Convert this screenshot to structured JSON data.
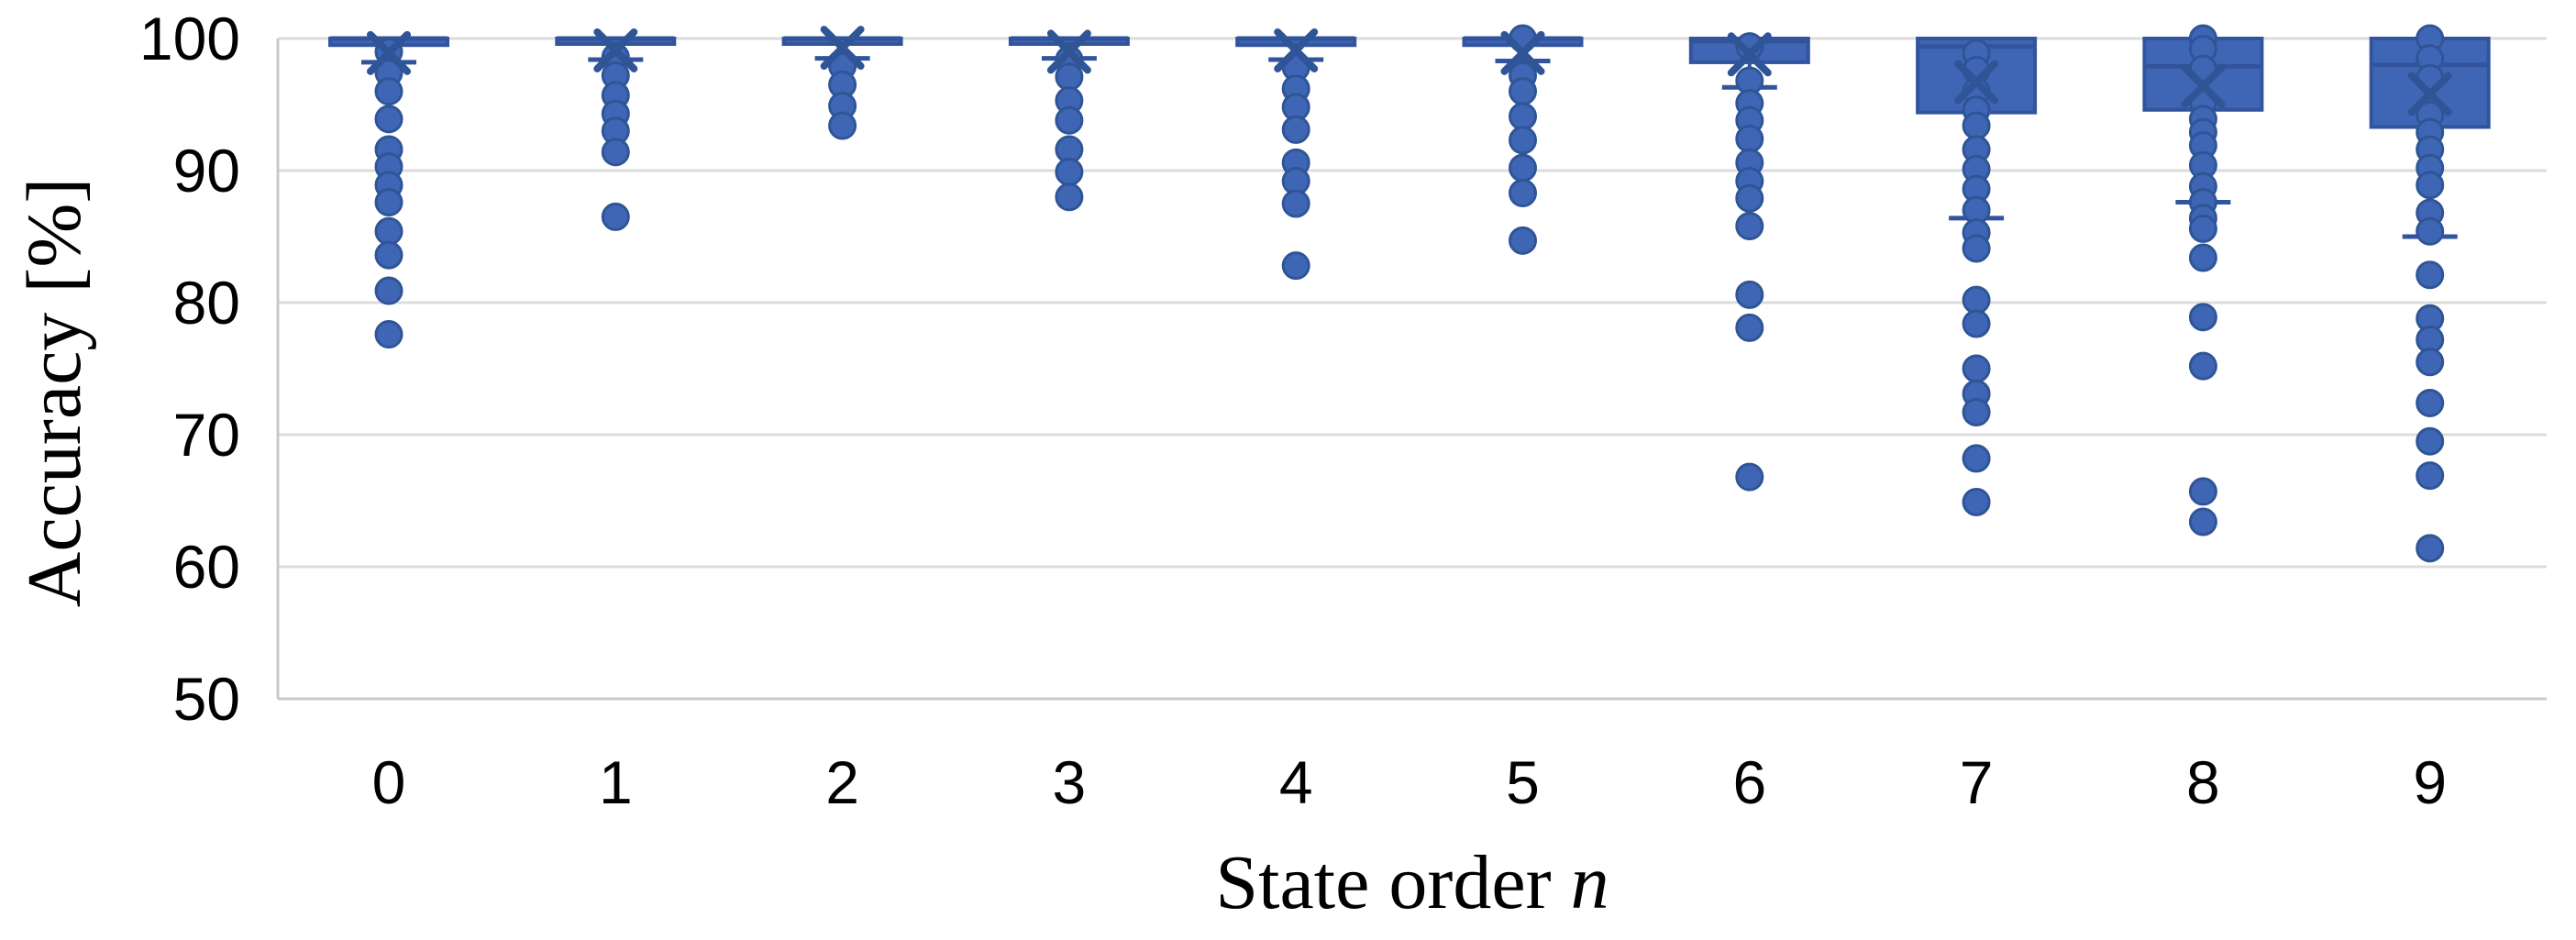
{
  "chart_data": {
    "type": "box",
    "ylabel": "Accuracy [%]",
    "xlabel_text": "State order ",
    "xlabel_var": "n",
    "ylim": [
      50,
      100
    ],
    "y_ticks": [
      100,
      90,
      80,
      70,
      60,
      50
    ],
    "categories": [
      "0",
      "1",
      "2",
      "3",
      "4",
      "5",
      "6",
      "7",
      "8",
      "9"
    ],
    "grid": "horizontal",
    "legend": "none",
    "series": [
      {
        "label": "0",
        "q1": 99.5,
        "q3": 100,
        "median": 100,
        "mean": 98.9,
        "whisker_low": 98.2,
        "points": [
          99.0,
          97.4,
          96.0,
          93.9,
          91.6,
          90.3,
          88.9,
          87.6,
          85.4,
          83.6,
          80.9,
          77.6
        ]
      },
      {
        "label": "1",
        "q1": 99.6,
        "q3": 100,
        "median": 100,
        "mean": 99.1,
        "whisker_low": 98.4,
        "points": [
          98.6,
          97.2,
          95.7,
          94.3,
          93.0,
          91.4,
          86.5
        ]
      },
      {
        "label": "2",
        "q1": 99.6,
        "q3": 100,
        "median": 100,
        "mean": 99.3,
        "whisker_low": 98.5,
        "points": [
          97.9,
          96.5,
          94.9,
          93.4
        ]
      },
      {
        "label": "3",
        "q1": 99.6,
        "q3": 100,
        "median": 100,
        "mean": 99.0,
        "whisker_low": 98.5,
        "points": [
          98.4,
          97.1,
          95.3,
          93.8,
          91.6,
          89.9,
          88.0
        ]
      },
      {
        "label": "4",
        "q1": 99.5,
        "q3": 100,
        "median": 100,
        "mean": 99.1,
        "whisker_low": 98.4,
        "points": [
          97.8,
          96.2,
          94.8,
          93.1,
          90.6,
          89.2,
          87.5,
          82.8
        ]
      },
      {
        "label": "5",
        "q1": 99.5,
        "q3": 100,
        "median": 100,
        "mean": 98.9,
        "whisker_low": 98.3,
        "points": [
          100,
          97.2,
          96.0,
          94.1,
          92.3,
          90.2,
          88.3,
          84.7
        ]
      },
      {
        "label": "6",
        "q1": 98.2,
        "q3": 100,
        "median": 99.8,
        "mean": 98.8,
        "whisker_low": 96.3,
        "points": [
          99.4,
          96.8,
          95.1,
          93.8,
          92.4,
          90.6,
          89.2,
          87.9,
          85.8,
          80.6,
          78.1,
          66.8
        ]
      },
      {
        "label": "7",
        "q1": 94.4,
        "q3": 100,
        "median": 99.4,
        "mean": 96.7,
        "whisker_low": 86.4,
        "points": [
          98.9,
          97.6,
          96.0,
          94.6,
          93.4,
          91.6,
          90.1,
          88.6,
          87.0,
          85.3,
          84.1,
          80.2,
          78.4,
          75.0,
          73.1,
          71.7,
          68.2,
          64.9
        ]
      },
      {
        "label": "8",
        "q1": 94.6,
        "q3": 100,
        "median": 97.9,
        "mean": 96.4,
        "whisker_low": 87.6,
        "points": [
          100,
          99.2,
          97.7,
          95.2,
          93.9,
          92.9,
          91.9,
          90.4,
          88.8,
          87.6,
          86.4,
          85.6,
          83.4,
          78.9,
          75.2,
          65.7,
          63.4
        ]
      },
      {
        "label": "9",
        "q1": 93.3,
        "q3": 100,
        "median": 98.0,
        "mean": 95.8,
        "whisker_low": 85.0,
        "points": [
          100,
          98.5,
          97.0,
          94.2,
          92.9,
          91.6,
          90.2,
          88.9,
          86.8,
          85.4,
          82.1,
          78.8,
          77.2,
          75.5,
          72.4,
          69.5,
          66.9,
          61.4
        ]
      }
    ],
    "colors": {
      "marker_fill": "#3E66B5",
      "marker_stroke": "#2F5597",
      "box_fill": "#3E66B5",
      "box_stroke": "#32549C",
      "gridline": "#DCDCDC",
      "axis_line": "#C9C9C9",
      "text": "#000000"
    }
  }
}
